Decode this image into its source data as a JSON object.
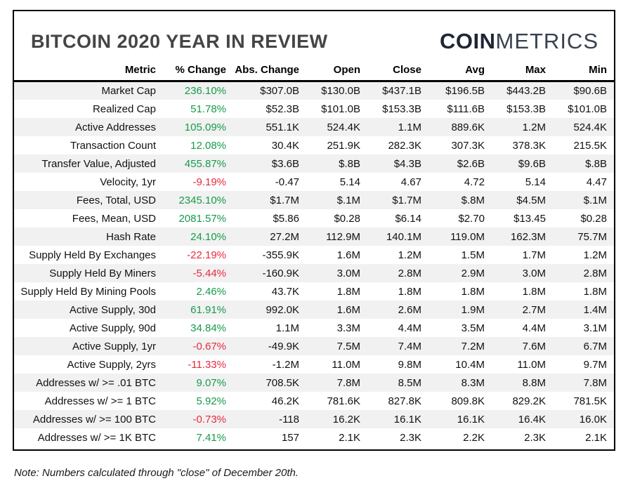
{
  "page": {
    "title": "BITCOIN 2020 YEAR IN REVIEW",
    "logo": {
      "bold": "COIN",
      "light": "METRICS"
    },
    "note": "Note: Numbers calculated through \"close\" of December 20th."
  },
  "colors": {
    "positive": "#169b4a",
    "negative": "#e9293d",
    "stripe": "#f1f1f1"
  },
  "chart_data": {
    "type": "table",
    "title": "BITCOIN 2020 YEAR IN REVIEW",
    "columns": [
      "Metric",
      "% Change",
      "Abs. Change",
      "Open",
      "Close",
      "Avg",
      "Max",
      "Min"
    ],
    "rows": [
      {
        "metric": "Market Cap",
        "pct_change": "236.10%",
        "trend": "positive",
        "abs_change": "$307.0B",
        "open": "$130.0B",
        "close": "$437.1B",
        "avg": "$196.5B",
        "max": "$443.2B",
        "min": "$90.6B"
      },
      {
        "metric": "Realized Cap",
        "pct_change": "51.78%",
        "trend": "positive",
        "abs_change": "$52.3B",
        "open": "$101.0B",
        "close": "$153.3B",
        "avg": "$111.6B",
        "max": "$153.3B",
        "min": "$101.0B"
      },
      {
        "metric": "Active Addresses",
        "pct_change": "105.09%",
        "trend": "positive",
        "abs_change": "551.1K",
        "open": "524.4K",
        "close": "1.1M",
        "avg": "889.6K",
        "max": "1.2M",
        "min": "524.4K"
      },
      {
        "metric": "Transaction Count",
        "pct_change": "12.08%",
        "trend": "positive",
        "abs_change": "30.4K",
        "open": "251.9K",
        "close": "282.3K",
        "avg": "307.3K",
        "max": "378.3K",
        "min": "215.5K"
      },
      {
        "metric": "Transfer Value, Adjusted",
        "pct_change": "455.87%",
        "trend": "positive",
        "abs_change": "$3.6B",
        "open": "$.8B",
        "close": "$4.3B",
        "avg": "$2.6B",
        "max": "$9.6B",
        "min": "$.8B"
      },
      {
        "metric": "Velocity, 1yr",
        "pct_change": "-9.19%",
        "trend": "negative",
        "abs_change": "-0.47",
        "open": "5.14",
        "close": "4.67",
        "avg": "4.72",
        "max": "5.14",
        "min": "4.47"
      },
      {
        "metric": "Fees, Total, USD",
        "pct_change": "2345.10%",
        "trend": "positive",
        "abs_change": "$1.7M",
        "open": "$.1M",
        "close": "$1.7M",
        "avg": "$.8M",
        "max": "$4.5M",
        "min": "$.1M"
      },
      {
        "metric": "Fees, Mean, USD",
        "pct_change": "2081.57%",
        "trend": "positive",
        "abs_change": "$5.86",
        "open": "$0.28",
        "close": "$6.14",
        "avg": "$2.70",
        "max": "$13.45",
        "min": "$0.28"
      },
      {
        "metric": "Hash Rate",
        "pct_change": "24.10%",
        "trend": "positive",
        "abs_change": "27.2M",
        "open": "112.9M",
        "close": "140.1M",
        "avg": "119.0M",
        "max": "162.3M",
        "min": "75.7M"
      },
      {
        "metric": "Supply Held By Exchanges",
        "pct_change": "-22.19%",
        "trend": "negative",
        "abs_change": "-355.9K",
        "open": "1.6M",
        "close": "1.2M",
        "avg": "1.5M",
        "max": "1.7M",
        "min": "1.2M"
      },
      {
        "metric": "Supply Held By Miners",
        "pct_change": "-5.44%",
        "trend": "negative",
        "abs_change": "-160.9K",
        "open": "3.0M",
        "close": "2.8M",
        "avg": "2.9M",
        "max": "3.0M",
        "min": "2.8M"
      },
      {
        "metric": "Supply Held By Mining Pools",
        "pct_change": "2.46%",
        "trend": "positive",
        "abs_change": "43.7K",
        "open": "1.8M",
        "close": "1.8M",
        "avg": "1.8M",
        "max": "1.8M",
        "min": "1.8M"
      },
      {
        "metric": "Active Supply, 30d",
        "pct_change": "61.91%",
        "trend": "positive",
        "abs_change": "992.0K",
        "open": "1.6M",
        "close": "2.6M",
        "avg": "1.9M",
        "max": "2.7M",
        "min": "1.4M"
      },
      {
        "metric": "Active Supply, 90d",
        "pct_change": "34.84%",
        "trend": "positive",
        "abs_change": "1.1M",
        "open": "3.3M",
        "close": "4.4M",
        "avg": "3.5M",
        "max": "4.4M",
        "min": "3.1M"
      },
      {
        "metric": "Active Supply, 1yr",
        "pct_change": "-0.67%",
        "trend": "negative",
        "abs_change": "-49.9K",
        "open": "7.5M",
        "close": "7.4M",
        "avg": "7.2M",
        "max": "7.6M",
        "min": "6.7M"
      },
      {
        "metric": "Active Supply, 2yrs",
        "pct_change": "-11.33%",
        "trend": "negative",
        "abs_change": "-1.2M",
        "open": "11.0M",
        "close": "9.8M",
        "avg": "10.4M",
        "max": "11.0M",
        "min": "9.7M"
      },
      {
        "metric": "Addresses w/ >= .01 BTC",
        "pct_change": "9.07%",
        "trend": "positive",
        "abs_change": "708.5K",
        "open": "7.8M",
        "close": "8.5M",
        "avg": "8.3M",
        "max": "8.8M",
        "min": "7.8M"
      },
      {
        "metric": "Addresses w/ >= 1 BTC",
        "pct_change": "5.92%",
        "trend": "positive",
        "abs_change": "46.2K",
        "open": "781.6K",
        "close": "827.8K",
        "avg": "809.8K",
        "max": "829.2K",
        "min": "781.5K"
      },
      {
        "metric": "Addresses w/ >= 100 BTC",
        "pct_change": "-0.73%",
        "trend": "negative",
        "abs_change": "-118",
        "open": "16.2K",
        "close": "16.1K",
        "avg": "16.1K",
        "max": "16.4K",
        "min": "16.0K"
      },
      {
        "metric": "Addresses w/ >= 1K BTC",
        "pct_change": "7.41%",
        "trend": "positive",
        "abs_change": "157",
        "open": "2.1K",
        "close": "2.3K",
        "avg": "2.2K",
        "max": "2.3K",
        "min": "2.1K"
      }
    ]
  }
}
